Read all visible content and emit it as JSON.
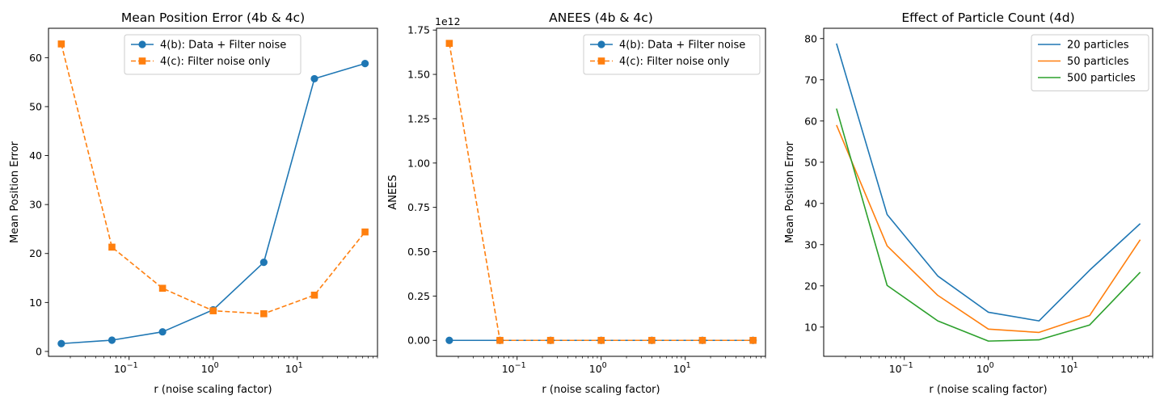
{
  "chart_data": [
    {
      "type": "line",
      "title": "Mean Position Error (4b & 4c)",
      "xlabel": "r (noise scaling factor)",
      "ylabel": "Mean Position Error",
      "xscale": "log",
      "x_tick_labels": [
        "10",
        "10",
        "10"
      ],
      "x_tick_exponents": [
        "−1",
        "0",
        "1"
      ],
      "x": [
        0.015625,
        0.0625,
        0.25,
        1,
        4,
        16,
        64
      ],
      "xlim": [
        0.011,
        90
      ],
      "ylim": [
        -1,
        66
      ],
      "y_ticks": [
        0,
        10,
        20,
        30,
        40,
        50,
        60
      ],
      "y_tick_labels": [
        "0",
        "10",
        "20",
        "30",
        "40",
        "50",
        "60"
      ],
      "grid": false,
      "legend_position": "top-center",
      "series": [
        {
          "name": "4(b): Data + Filter noise",
          "color": "#1f77b4",
          "marker": "circle",
          "linestyle": "solid",
          "values": [
            1.6,
            2.3,
            4.0,
            8.5,
            18.2,
            55.7,
            58.8
          ]
        },
        {
          "name": "4(c): Filter noise only",
          "color": "#ff7f0e",
          "marker": "square",
          "linestyle": "dashed",
          "values": [
            62.8,
            21.3,
            12.9,
            8.3,
            7.7,
            11.5,
            24.4
          ]
        }
      ]
    },
    {
      "type": "line",
      "title": "ANEES (4b & 4c)",
      "xlabel": "r (noise scaling factor)",
      "ylabel": "ANEES",
      "y_multiplier_label": "1e12",
      "xscale": "log",
      "x_tick_labels": [
        "10",
        "10",
        "10"
      ],
      "x_tick_exponents": [
        "−1",
        "0",
        "1"
      ],
      "x": [
        0.015625,
        0.0625,
        0.25,
        1,
        4,
        16,
        64
      ],
      "xlim": [
        0.011,
        90
      ],
      "ylim": [
        -0.09,
        1.76
      ],
      "y_ticks": [
        0,
        0.25,
        0.5,
        0.75,
        1.0,
        1.25,
        1.5,
        1.75
      ],
      "y_tick_labels": [
        "0.00",
        "0.25",
        "0.50",
        "0.75",
        "1.00",
        "1.25",
        "1.50",
        "1.75"
      ],
      "grid": false,
      "legend_position": "top-right",
      "series": [
        {
          "name": "4(b): Data + Filter noise",
          "color": "#1f77b4",
          "marker": "circle",
          "linestyle": "solid",
          "values": [
            0,
            0,
            0,
            0,
            0,
            0,
            0
          ]
        },
        {
          "name": "4(c): Filter noise only",
          "color": "#ff7f0e",
          "marker": "square",
          "linestyle": "dashed",
          "values": [
            1.675,
            0,
            0,
            0,
            0,
            0,
            0
          ]
        }
      ]
    },
    {
      "type": "line",
      "title": "Effect of Particle Count (4d)",
      "xlabel": "r (noise scaling factor)",
      "ylabel": "Mean Position Error",
      "xscale": "log",
      "x_tick_labels": [
        "10",
        "10",
        "10"
      ],
      "x_tick_exponents": [
        "−1",
        "0",
        "1"
      ],
      "x": [
        0.015625,
        0.0625,
        0.25,
        1,
        4,
        16,
        64
      ],
      "xlim": [
        0.011,
        90
      ],
      "ylim": [
        2.9,
        82.5
      ],
      "y_ticks": [
        10,
        20,
        30,
        40,
        50,
        60,
        70,
        80
      ],
      "y_tick_labels": [
        "10",
        "20",
        "30",
        "40",
        "50",
        "60",
        "70",
        "80"
      ],
      "grid": false,
      "legend_position": "top-right",
      "series": [
        {
          "name": "20 particles",
          "color": "#1f77b4",
          "marker": "none",
          "linestyle": "solid",
          "values": [
            78.8,
            37.3,
            22.4,
            13.6,
            11.5,
            23.8,
            35.1
          ]
        },
        {
          "name": "50 particles",
          "color": "#ff7f0e",
          "marker": "none",
          "linestyle": "solid",
          "values": [
            59.0,
            29.7,
            17.7,
            9.5,
            8.7,
            12.8,
            31.2
          ]
        },
        {
          "name": "500 particles",
          "color": "#2ca02c",
          "marker": "none",
          "linestyle": "solid",
          "values": [
            63.0,
            20.1,
            11.5,
            6.6,
            6.9,
            10.5,
            23.3
          ]
        }
      ]
    }
  ]
}
